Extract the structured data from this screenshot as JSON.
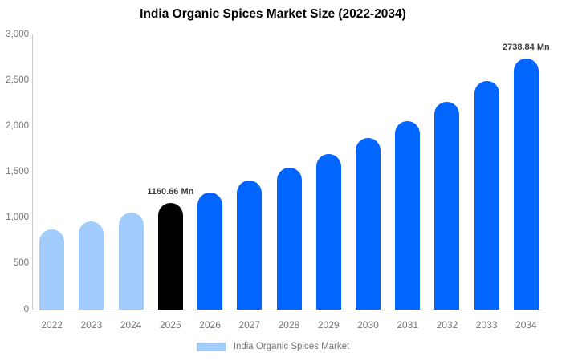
{
  "title": "India Organic Spices Market Size (2022-2034)",
  "legend": {
    "label": "India Organic Spices Market",
    "swatch_color": "#a1ccfc"
  },
  "palette": {
    "historical_bar": "#a1ccfc",
    "highlight_bar": "#000000",
    "forecast_bar": "#0066ff",
    "axis_line": "#cccccc",
    "tick_text": "#757575",
    "data_label_text": "#3d3d3d",
    "title_text": "#000000"
  },
  "chart_data": {
    "type": "bar",
    "title": "India Organic Spices Market Size (2022-2034)",
    "xlabel": "",
    "ylabel": "",
    "unit": "Mn",
    "categories": [
      "2022",
      "2023",
      "2024",
      "2025",
      "2026",
      "2027",
      "2028",
      "2029",
      "2030",
      "2031",
      "2032",
      "2033",
      "2034"
    ],
    "values": [
      872,
      959,
      1055,
      1160.66,
      1277,
      1405,
      1545,
      1700,
      1870,
      2057,
      2263,
      2489,
      2738.84
    ],
    "bar_colors": [
      "#a1ccfc",
      "#a1ccfc",
      "#a1ccfc",
      "#000000",
      "#0066ff",
      "#0066ff",
      "#0066ff",
      "#0066ff",
      "#0066ff",
      "#0066ff",
      "#0066ff",
      "#0066ff",
      "#0066ff"
    ],
    "data_labels": [
      {
        "category": "2025",
        "text": "1160.66 Mn"
      },
      {
        "category": "2034",
        "text": "2738.84 Mn"
      }
    ],
    "ylim": [
      0,
      3000
    ],
    "yticks": [
      {
        "value": 0,
        "label": "0"
      },
      {
        "value": 500,
        "label": "500"
      },
      {
        "value": 1000,
        "label": "1,000"
      },
      {
        "value": 1500,
        "label": "1,500"
      },
      {
        "value": 2000,
        "label": "2,000"
      },
      {
        "value": 2500,
        "label": "2,500"
      },
      {
        "value": 3000,
        "label": "3,000"
      }
    ],
    "grid": false,
    "legend_position": "bottom"
  }
}
